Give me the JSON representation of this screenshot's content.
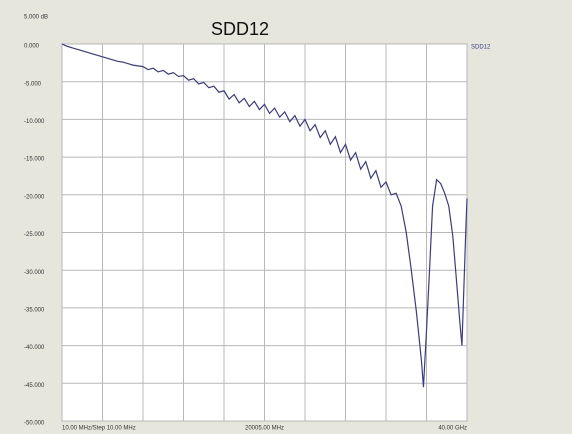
{
  "chart_data": {
    "type": "line",
    "title": "SDD12",
    "top_label": "5.000 dB",
    "x": [
      0,
      0.5,
      1,
      1.5,
      2,
      2.5,
      3,
      3.5,
      4,
      4.5,
      5,
      5.5,
      6,
      6.5,
      7,
      7.5,
      8,
      8.5,
      9,
      9.5,
      10,
      10.5,
      11,
      11.5,
      12,
      12.5,
      13,
      13.5,
      14,
      14.5,
      15,
      15.5,
      16,
      16.5,
      17,
      17.5,
      18,
      18.5,
      19,
      19.5,
      20,
      20.5,
      21,
      21.5,
      22,
      22.5,
      23,
      23.5,
      24,
      24.5,
      25,
      25.5,
      26,
      26.5,
      27,
      27.5,
      28,
      28.5,
      29,
      29.5,
      30,
      30.5,
      31,
      31.5,
      32,
      32.5,
      33,
      33.5,
      34,
      34.5,
      35,
      35.5,
      35.7,
      36,
      36.3,
      36.6,
      37,
      37.4,
      37.8,
      38.2,
      38.6,
      39,
      39.3,
      39.5,
      39.7,
      39.9,
      40
    ],
    "series": [
      {
        "name": "SDD12",
        "color": "#3a3a8c",
        "values": [
          0,
          -0.3,
          -0.5,
          -0.7,
          -0.9,
          -1.1,
          -1.3,
          -1.5,
          -1.7,
          -1.9,
          -2.1,
          -2.3,
          -2.4,
          -2.6,
          -2.8,
          -2.9,
          -3.0,
          -3.4,
          -3.2,
          -3.7,
          -3.5,
          -4.0,
          -3.8,
          -4.3,
          -4.2,
          -4.8,
          -4.6,
          -5.3,
          -5.1,
          -5.8,
          -5.6,
          -6.4,
          -6.2,
          -7.3,
          -6.7,
          -7.8,
          -7.2,
          -8.3,
          -7.6,
          -8.7,
          -8.0,
          -9.2,
          -8.5,
          -9.7,
          -9.0,
          -10.3,
          -9.5,
          -10.9,
          -10.0,
          -11.5,
          -10.7,
          -12.4,
          -11.5,
          -13.3,
          -12.3,
          -14.4,
          -13.3,
          -15.4,
          -14.4,
          -16.6,
          -15.6,
          -17.8,
          -16.8,
          -19.0,
          -18.3,
          -20.0,
          -19.8,
          -21.5,
          -25.0,
          -30.0,
          -35.5,
          -42.0,
          -45.5,
          -38.0,
          -30.0,
          -21.5,
          -18.0,
          -18.5,
          -19.8,
          -21.5,
          -25.5,
          -32.0,
          -37.0,
          -40.0,
          -32.0,
          -24.0,
          -20.5
        ]
      }
    ],
    "xlim": [
      0,
      40
    ],
    "xticks": [
      0,
      4,
      8,
      12,
      16,
      20,
      24,
      28,
      32,
      36,
      40
    ],
    "x_axis_labels": [
      {
        "value": 0,
        "label": "10.00 MHz/Step 10.00 MHz"
      },
      {
        "value": 20,
        "label": "20005.00 MHz"
      },
      {
        "value": 40,
        "label": "40.00 GHz"
      }
    ],
    "ylim": [
      -50,
      0
    ],
    "yticks": [
      {
        "value": 0,
        "label": "0.000"
      },
      {
        "value": -5,
        "label": "-5.000"
      },
      {
        "value": -10,
        "label": "-10.000"
      },
      {
        "value": -15,
        "label": "-15.000"
      },
      {
        "value": -20,
        "label": "-20.000"
      },
      {
        "value": -25,
        "label": "-25.000"
      },
      {
        "value": -30,
        "label": "-30.000"
      },
      {
        "value": -35,
        "label": "-35.000"
      },
      {
        "value": -40,
        "label": "-40.000"
      },
      {
        "value": -45,
        "label": "-45.000"
      },
      {
        "value": -50,
        "label": "-50.000"
      }
    ],
    "grid": true
  }
}
